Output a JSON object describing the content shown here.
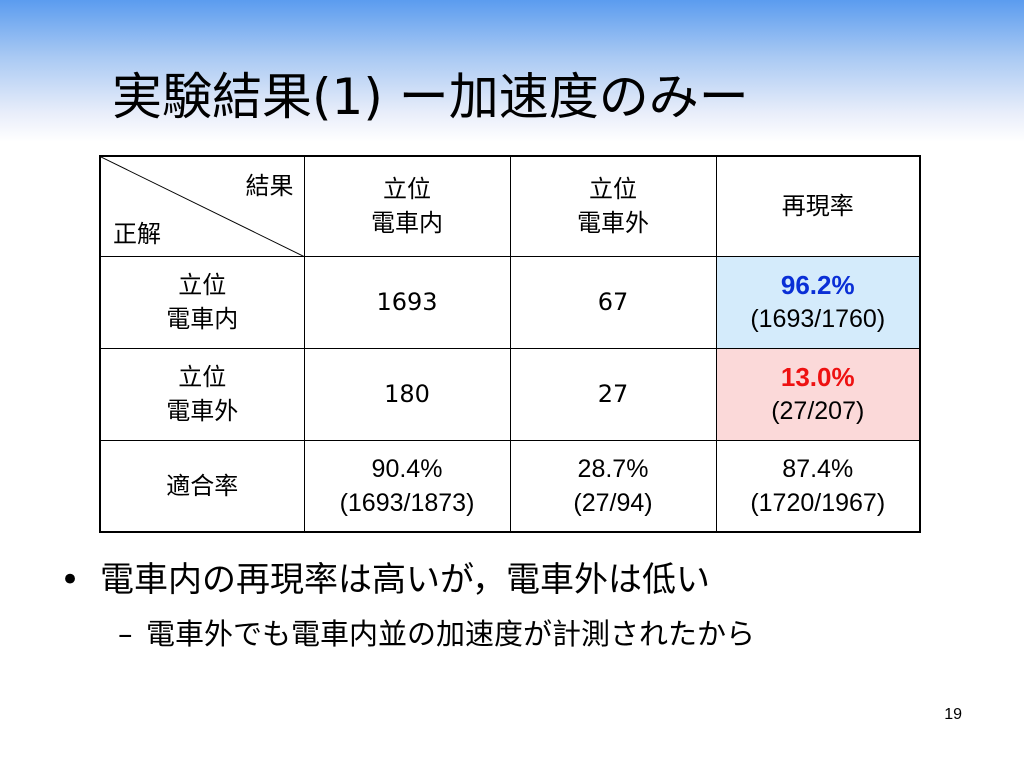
{
  "slide": {
    "title": "実験結果(1) ー加速度のみー",
    "page_number": "19"
  },
  "table": {
    "corner": {
      "result_label": "結果",
      "answer_label": "正解"
    },
    "col_headers": [
      {
        "line1": "立位",
        "line2": "電車内"
      },
      {
        "line1": "立位",
        "line2": "電車外"
      },
      {
        "line1": "再現率",
        "line2": ""
      }
    ],
    "rows": [
      {
        "header": {
          "line1": "立位",
          "line2": "電車内"
        },
        "c1": "1693",
        "c2": "67",
        "recall_value": "96.2%",
        "recall_detail": "(1693/1760)"
      },
      {
        "header": {
          "line1": "立位",
          "line2": "電車外"
        },
        "c1": "180",
        "c2": "27",
        "recall_value": "13.0%",
        "recall_detail": "(27/207)"
      },
      {
        "header": {
          "line1": "適合率",
          "line2": ""
        },
        "c1_value": "90.4%",
        "c1_detail": "(1693/1873)",
        "c2_value": "28.7%",
        "c2_detail": "(27/94)",
        "c3_value": "87.4%",
        "c3_detail": "(1720/1967)"
      }
    ],
    "colors": {
      "recall_good": "#0a2fd6",
      "recall_bad": "#ee1111",
      "good_bg": "#d4ebfb",
      "bad_bg": "#fbd9d9"
    }
  },
  "bullets": {
    "main": "電車内の再現率は高いが，電車外は低い",
    "main_marker": "•",
    "sub": "電車外でも電車内並の加速度が計測されたから",
    "sub_marker": "–"
  }
}
